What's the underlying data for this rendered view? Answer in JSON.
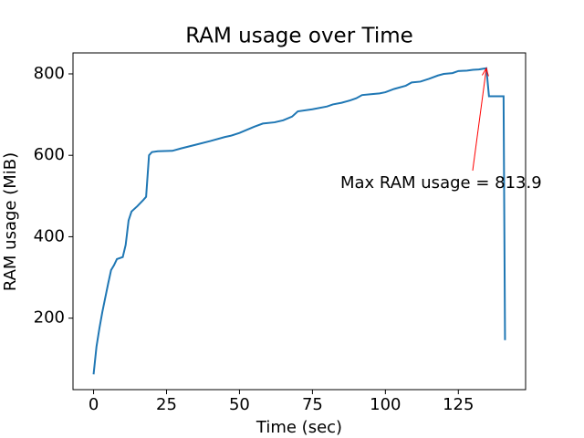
{
  "chart_data": {
    "type": "line",
    "title": "RAM usage over Time",
    "x_label": "Time (sec)",
    "y_label": "RAM usage (MiB)",
    "x": [
      0,
      1,
      2,
      3,
      4,
      5,
      6,
      7,
      8,
      10,
      11,
      12,
      13,
      15,
      17,
      18,
      19,
      20,
      22,
      27,
      30,
      35,
      40,
      45,
      47,
      50,
      55,
      58,
      62,
      65,
      68,
      70,
      75,
      80,
      82,
      85,
      88,
      90,
      92,
      95,
      98,
      100,
      103,
      107,
      109,
      112,
      115,
      118,
      120,
      123,
      125,
      128,
      130,
      132,
      134.6,
      135.5,
      140.5,
      141
    ],
    "series": [
      {
        "name": "RAM usage",
        "color": "#1f77b4",
        "values": [
          62,
          130,
          175,
          215,
          250,
          285,
          318,
          330,
          345,
          350,
          380,
          440,
          462,
          475,
          490,
          498,
          600,
          608,
          610,
          611,
          617,
          626,
          635,
          645,
          648,
          655,
          670,
          678,
          681,
          686,
          695,
          708,
          713,
          720,
          725,
          729,
          735,
          740,
          748,
          750,
          752,
          755,
          763,
          771,
          779,
          781,
          788,
          796,
          800,
          802,
          807,
          808,
          810,
          811,
          813.9,
          745,
          745,
          146
        ]
      }
    ],
    "annotations": [
      {
        "text": "Max RAM usage = 813.9",
        "color": "#ff0000"
      }
    ],
    "xlim": [
      -7.05,
      148.05
    ],
    "xticks": [
      0,
      25,
      50,
      75,
      100,
      125
    ],
    "ylim": [
      24.4,
      851.5
    ],
    "yticks": [
      200,
      400,
      600,
      800
    ],
    "grid": false
  }
}
